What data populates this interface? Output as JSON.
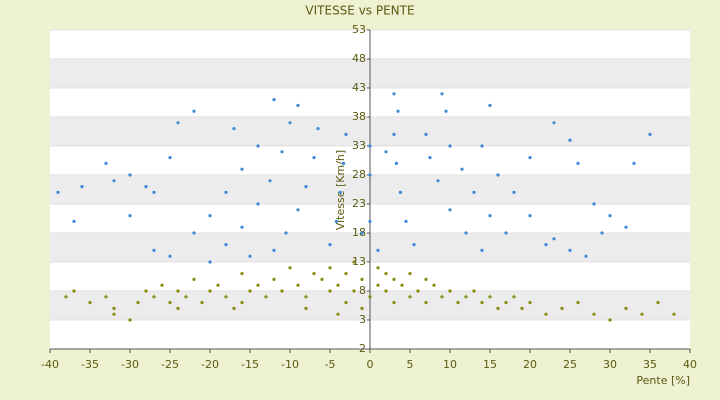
{
  "chart_data": {
    "type": "scatter",
    "title": "VITESSE vs PENTE",
    "x_label": "Pente [%]",
    "y_label": "Vitesse [Km/h]",
    "xlim": [
      -40,
      40
    ],
    "xticks": [
      -40,
      -35,
      -30,
      -25,
      -20,
      -15,
      -10,
      -5,
      0,
      5,
      10,
      15,
      20,
      25,
      30,
      35,
      40
    ],
    "ylim": [
      -2,
      53
    ],
    "yticks": [
      -2,
      3,
      8,
      13,
      18,
      23,
      28,
      33,
      38,
      43,
      48,
      53
    ],
    "grid": true,
    "series": [
      {
        "color": "#3c8ad6",
        "x": [
          -3,
          -3.3,
          -3.7,
          -4.2,
          -5,
          3,
          3.3,
          3.8,
          4.5,
          5.5,
          -6.5,
          -7,
          -8,
          -9,
          -10.5,
          -12,
          7,
          7.5,
          8.5,
          10,
          12,
          14,
          -10,
          -11,
          -12.5,
          -14,
          -16,
          -18,
          10,
          11.5,
          13,
          15,
          17,
          -14,
          -16,
          -18,
          -20,
          -22,
          14,
          16,
          18,
          20,
          23,
          -22,
          -24,
          -17,
          -12,
          -9,
          -33,
          -32,
          -30,
          -28,
          -25,
          -27,
          -36,
          -39,
          -37,
          -30,
          -27,
          -25,
          -20,
          -15,
          3,
          3.5,
          9,
          9.5,
          15,
          23,
          25,
          20,
          26,
          33,
          35,
          28,
          30,
          29,
          32,
          25,
          22,
          27,
          0,
          0,
          0,
          -1,
          1,
          2
        ],
        "y": [
          35,
          30,
          25,
          20,
          16,
          35,
          30,
          25,
          20,
          16,
          36,
          31,
          26,
          22,
          18,
          15,
          35,
          31,
          27,
          22,
          18,
          15,
          37,
          32,
          27,
          23,
          19,
          16,
          33,
          29,
          25,
          21,
          18,
          33,
          29,
          25,
          21,
          18,
          33,
          28,
          25,
          21,
          17,
          39,
          37,
          36,
          41,
          40,
          30,
          27,
          28,
          26,
          31,
          25,
          26,
          25,
          20,
          21,
          15,
          14,
          13,
          14,
          42,
          39,
          42,
          39,
          40,
          37,
          34,
          31,
          30,
          30,
          35,
          23,
          21,
          18,
          19,
          15,
          16,
          14,
          33,
          28,
          20,
          18,
          15,
          32
        ]
      },
      {
        "color": "#8a8a10",
        "x": [
          -38,
          -37,
          -35,
          -33,
          -32,
          -30,
          -29,
          -28,
          -27,
          -26,
          -25,
          -24,
          -23,
          -22,
          -21,
          -20,
          -19,
          -18,
          -17,
          -16,
          -15,
          -14,
          -13,
          -12,
          -11,
          -10,
          -9,
          -8,
          -7,
          -6,
          -5,
          -5,
          -4,
          -3,
          -3,
          -2,
          -2,
          -1,
          -1,
          0,
          1,
          1,
          2,
          2,
          3,
          3,
          4,
          5,
          5,
          6,
          7,
          7,
          8,
          9,
          10,
          11,
          12,
          13,
          14,
          15,
          16,
          17,
          18,
          19,
          20,
          22,
          24,
          26,
          28,
          30,
          32,
          34,
          36,
          38,
          -32,
          -24,
          -16,
          -8,
          -4
        ],
        "y": [
          7,
          8,
          6,
          7,
          5,
          3,
          6,
          8,
          7,
          9,
          6,
          8,
          7,
          10,
          6,
          8,
          9,
          7,
          5,
          11,
          8,
          9,
          7,
          10,
          8,
          12,
          9,
          7,
          11,
          10,
          12,
          8,
          9,
          11,
          6,
          13,
          8,
          10,
          5,
          7,
          9,
          12,
          8,
          11,
          10,
          6,
          9,
          7,
          11,
          8,
          10,
          6,
          9,
          7,
          8,
          6,
          7,
          8,
          6,
          7,
          5,
          6,
          7,
          5,
          6,
          4,
          5,
          6,
          4,
          3,
          5,
          4,
          6,
          4,
          4,
          5,
          6,
          5,
          4
        ]
      }
    ]
  }
}
